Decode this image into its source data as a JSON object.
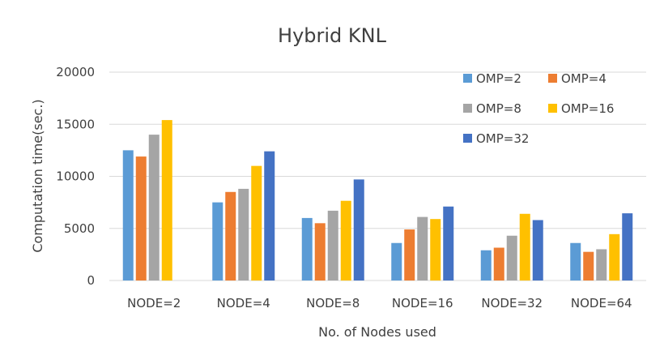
{
  "chart_data": {
    "type": "bar",
    "title": "Hybrid KNL",
    "xlabel": "No. of Nodes used",
    "ylabel": "Computation time(sec.)",
    "ylim": [
      0,
      20000
    ],
    "yticks": [
      "0",
      "5000",
      "10000",
      "15000",
      "20000"
    ],
    "grid": true,
    "legend_position": "top-right",
    "categories": [
      "NODE=2",
      "NODE=4",
      "NODE=8",
      "NODE=16",
      "NODE=32",
      "NODE=64"
    ],
    "series": [
      {
        "name": "OMP=2",
        "color": "#5B9BD5",
        "values": [
          12500,
          7500,
          6000,
          3600,
          2900,
          3600
        ]
      },
      {
        "name": "OMP=4",
        "color": "#ED7D31",
        "values": [
          11900,
          8500,
          5500,
          4900,
          3150,
          2750
        ]
      },
      {
        "name": "OMP=8",
        "color": "#A5A5A5",
        "values": [
          14000,
          8800,
          6700,
          6100,
          4300,
          3000
        ]
      },
      {
        "name": "OMP=16",
        "color": "#FFC000",
        "values": [
          15400,
          11000,
          7650,
          5900,
          6400,
          4450
        ]
      },
      {
        "name": "OMP=32",
        "color": "#4472C4",
        "values": [
          null,
          12400,
          9700,
          7100,
          5800,
          6450
        ]
      }
    ]
  }
}
